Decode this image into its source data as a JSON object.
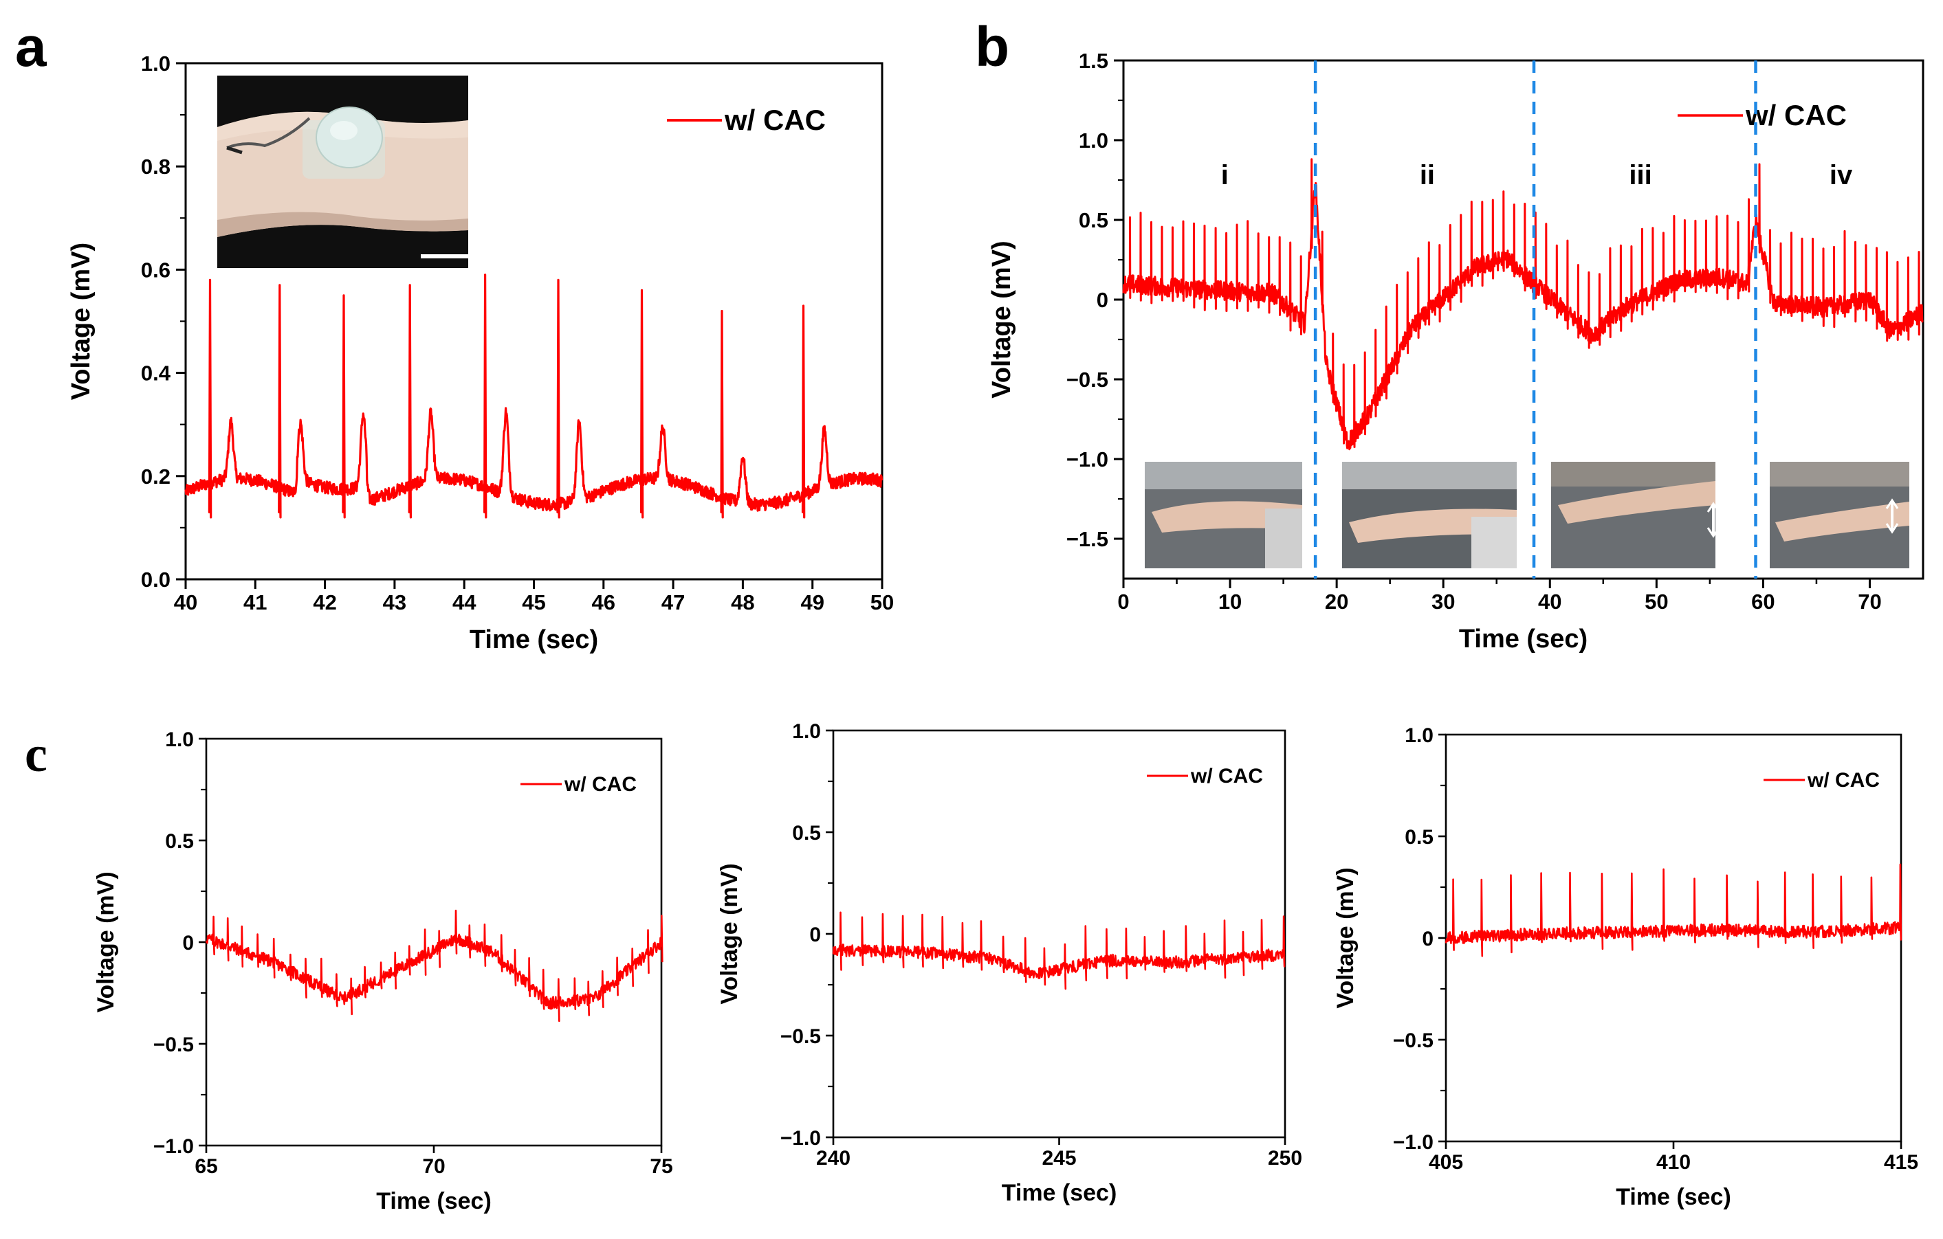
{
  "colors": {
    "signal": "#ff0000",
    "divider": "#1e88e5",
    "axis": "#000000",
    "photo_bg": "#111111"
  },
  "panels": {
    "a": {
      "letter": "a"
    },
    "b": {
      "letter": "b"
    },
    "c": {
      "letter": "c"
    }
  },
  "chart_data": [
    {
      "id": "a",
      "type": "line",
      "title": "",
      "xlabel": "Time (sec)",
      "ylabel": "Voltage (mV)",
      "xlim": [
        40,
        50
      ],
      "ylim": [
        0.0,
        1.0
      ],
      "xticks": [
        40,
        41,
        42,
        43,
        44,
        45,
        46,
        47,
        48,
        49,
        50
      ],
      "xtick_labels": [
        "40",
        "41",
        "42",
        "43",
        "44",
        "45",
        "46",
        "47",
        "48",
        "49",
        "50"
      ],
      "yticks": [
        0.0,
        0.2,
        0.4,
        0.6,
        0.8,
        1.0
      ],
      "ytick_labels": [
        "0.0",
        "0.2",
        "0.4",
        "0.6",
        "0.8",
        "1.0"
      ],
      "legend": {
        "label": "w/ CAC",
        "position": "top-right"
      },
      "inset": "photo of wireless sensor patch on wrist",
      "series": [
        {
          "name": "w/ CAC",
          "baseline": 0.17,
          "r_peak_times": [
            40.35,
            41.35,
            42.27,
            43.22,
            44.3,
            45.35,
            46.55,
            47.7,
            48.87
          ],
          "r_peak_values": [
            0.58,
            0.57,
            0.55,
            0.57,
            0.59,
            0.58,
            0.56,
            0.52,
            0.53
          ],
          "t_wave_times": [
            40.65,
            41.65,
            42.55,
            43.52,
            44.6,
            45.65,
            46.85,
            48.0,
            49.17
          ],
          "t_wave_values": [
            0.28,
            0.28,
            0.31,
            0.3,
            0.33,
            0.32,
            0.27,
            0.26,
            0.28
          ]
        }
      ]
    },
    {
      "id": "b",
      "type": "line",
      "title": "",
      "xlabel": "Time (sec)",
      "ylabel": "Voltage (mV)",
      "xlim": [
        0,
        75
      ],
      "ylim": [
        -1.75,
        1.5
      ],
      "xticks": [
        0,
        10,
        20,
        30,
        40,
        50,
        60,
        70
      ],
      "xtick_labels": [
        "0",
        "10",
        "20",
        "30",
        "40",
        "50",
        "60",
        "70"
      ],
      "yticks": [
        -1.5,
        -1.0,
        -0.5,
        0,
        0.5,
        1.0,
        1.5
      ],
      "ytick_labels": [
        "−1.5",
        "−1.0",
        "−0.5",
        "0",
        "0.5",
        "1.0",
        "1.5"
      ],
      "legend": {
        "label": "w/ CAC",
        "position": "top-right"
      },
      "dividers": [
        18,
        38.5,
        59.3
      ],
      "phases": [
        {
          "label": "i",
          "center": 9.5
        },
        {
          "label": "ii",
          "center": 28.5
        },
        {
          "label": "iii",
          "center": 48.5
        },
        {
          "label": "iv",
          "center": 67.3
        }
      ],
      "series": [
        {
          "name": "w/ CAC",
          "beat_interval": 1.0,
          "r_peak_height": 0.4,
          "baseline_keypoints": {
            "t": [
              0,
              8,
              14,
              17,
              18,
              19,
              21,
              23,
              27,
              33,
              36,
              38.5,
              41,
              44,
              47,
              52,
              56,
              58.5,
              59.3,
              61,
              66,
              70,
              72,
              75
            ],
            "v": [
              0.1,
              0.06,
              0.04,
              -0.15,
              0.75,
              -0.4,
              -0.9,
              -0.72,
              -0.18,
              0.2,
              0.26,
              0.1,
              -0.05,
              -0.22,
              -0.05,
              0.12,
              0.14,
              0.1,
              0.5,
              -0.02,
              -0.05,
              0.0,
              -0.2,
              -0.08
            ]
          }
        }
      ]
    },
    {
      "id": "c1",
      "type": "line",
      "title": "",
      "xlabel": "Time (sec)",
      "ylabel": "Voltage (mV)",
      "xlim": [
        65,
        75
      ],
      "ylim": [
        -1.0,
        1.0
      ],
      "xticks": [
        65,
        70,
        75
      ],
      "xtick_labels": [
        "65",
        "70",
        "75"
      ],
      "yticks": [
        -1.0,
        -0.5,
        0,
        0.5,
        1.0
      ],
      "ytick_labels": [
        "−1.0",
        "−0.5",
        "0",
        "0.5",
        "1.0"
      ],
      "legend": {
        "label": "w/ CAC",
        "position": "top-right"
      },
      "series": [
        {
          "name": "w/ CAC",
          "beat_interval": 0.33,
          "r_peak_height": 0.12,
          "baseline_keypoints": {
            "t": [
              65,
              66.5,
              68,
              69.5,
              70.5,
              71.3,
              72.5,
              73.5,
              75
            ],
            "v": [
              0.02,
              -0.1,
              -0.28,
              -0.1,
              0.02,
              -0.05,
              -0.3,
              -0.28,
              0.0
            ]
          }
        }
      ]
    },
    {
      "id": "c2",
      "type": "line",
      "title": "",
      "xlabel": "Time (sec)",
      "ylabel": "Voltage (mV)",
      "xlim": [
        240,
        250
      ],
      "ylim": [
        -1.0,
        1.0
      ],
      "xticks": [
        240,
        245,
        250
      ],
      "xtick_labels": [
        "240",
        "245",
        "250"
      ],
      "yticks": [
        -1.0,
        -0.5,
        0,
        0.5,
        1.0
      ],
      "ytick_labels": [
        "−1.0",
        "−0.5",
        "0",
        "0.5",
        "1.0"
      ],
      "legend": {
        "label": "w/ CAC",
        "position": "top-right"
      },
      "series": [
        {
          "name": "w/ CAC",
          "beat_interval": 0.45,
          "r_peak_height": 0.16,
          "baseline_keypoints": {
            "t": [
              240,
              242,
              243.5,
              244.5,
              246,
              247.5,
              250
            ],
            "v": [
              -0.08,
              -0.09,
              -0.12,
              -0.2,
              -0.13,
              -0.14,
              -0.1
            ]
          }
        }
      ]
    },
    {
      "id": "c3",
      "type": "line",
      "title": "",
      "xlabel": "Time (sec)",
      "ylabel": "Voltage (mV)",
      "xlim": [
        405,
        415
      ],
      "ylim": [
        -1.0,
        1.0
      ],
      "xticks": [
        405,
        410,
        415
      ],
      "xtick_labels": [
        "405",
        "410",
        "415"
      ],
      "yticks": [
        -1.0,
        -0.5,
        0,
        0.5,
        1.0
      ],
      "ytick_labels": [
        "−1.0",
        "−0.5",
        "0",
        "0.5",
        "1.0"
      ],
      "legend": {
        "label": "w/ CAC",
        "position": "top-right"
      },
      "series": [
        {
          "name": "w/ CAC",
          "beat_interval": 0.65,
          "r_peak_height": 0.28,
          "baseline_keypoints": {
            "t": [
              405,
              407,
              409,
              411,
              413,
              415
            ],
            "v": [
              0.0,
              0.02,
              0.03,
              0.04,
              0.03,
              0.05
            ]
          }
        }
      ]
    }
  ]
}
